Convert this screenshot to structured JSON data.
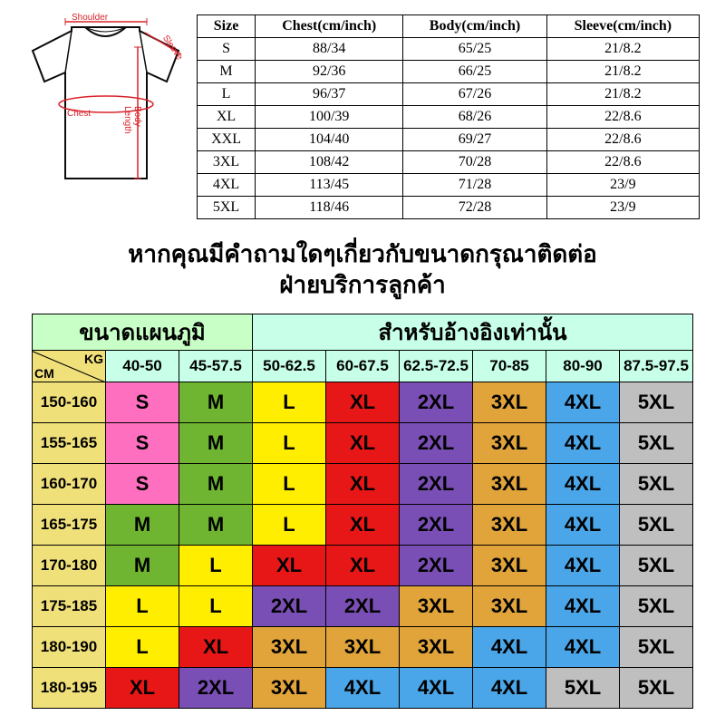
{
  "shirt_labels": {
    "shoulder": "Shoulder",
    "sleeve": "Sleeve",
    "chest": "Chest",
    "body": "Body Length"
  },
  "shirt_colors": {
    "outline": "#0b0b0b",
    "accent": "#d8232a",
    "fill": "#ffffff"
  },
  "size_table": {
    "headers": [
      "Size",
      "Chest(cm/inch)",
      "Body(cm/inch)",
      "Sleeve(cm/inch)"
    ],
    "rows": [
      [
        "S",
        "88/34",
        "65/25",
        "21/8.2"
      ],
      [
        "M",
        "92/36",
        "66/25",
        "21/8.2"
      ],
      [
        "L",
        "96/37",
        "67/26",
        "21/8.2"
      ],
      [
        "XL",
        "100/39",
        "68/26",
        "22/8.6"
      ],
      [
        "XXL",
        "104/40",
        "69/27",
        "22/8.6"
      ],
      [
        "3XL",
        "108/42",
        "70/28",
        "22/8.6"
      ],
      [
        "4XL",
        "113/45",
        "71/28",
        "23/9"
      ],
      [
        "5XL",
        "118/46",
        "72/28",
        "23/9"
      ]
    ]
  },
  "message": {
    "line1": "หากคุณมีคำถามใดๆเกี่ยวกับขนาดกรุณาติดต่อ",
    "line2": "ฝ่ายบริการลูกค้า"
  },
  "rec_table": {
    "group_headers": [
      {
        "label": "ขนาดแผนภูมิ",
        "span": 3,
        "bg": "#c7ffc7"
      },
      {
        "label": "สำหรับอ้างอิงเท่านั้น",
        "span": 6,
        "bg": "#c7ffe9"
      }
    ],
    "corner": {
      "cm": "CM",
      "kg": "KG"
    },
    "weight_cols": [
      "40-50",
      "45-57.5",
      "50-62.5",
      "60-67.5",
      "62.5-72.5",
      "70-85",
      "80-90",
      "87.5-97.5"
    ],
    "height_rows": [
      "150-160",
      "155-165",
      "160-170",
      "165-175",
      "170-180",
      "175-185",
      "180-190",
      "180-195"
    ],
    "cells": [
      [
        "S",
        "M",
        "L",
        "XL",
        "2XL",
        "3XL",
        "4XL",
        "5XL"
      ],
      [
        "S",
        "M",
        "L",
        "XL",
        "2XL",
        "3XL",
        "4XL",
        "5XL"
      ],
      [
        "S",
        "M",
        "L",
        "XL",
        "2XL",
        "3XL",
        "4XL",
        "5XL"
      ],
      [
        "M",
        "M",
        "L",
        "XL",
        "2XL",
        "3XL",
        "4XL",
        "5XL"
      ],
      [
        "M",
        "L",
        "XL",
        "XL",
        "2XL",
        "3XL",
        "4XL",
        "5XL"
      ],
      [
        "L",
        "L",
        "2XL",
        "2XL",
        "3XL",
        "3XL",
        "4XL",
        "5XL"
      ],
      [
        "L",
        "XL",
        "3XL",
        "3XL",
        "3XL",
        "4XL",
        "4XL",
        "5XL"
      ],
      [
        "XL",
        "2XL",
        "3XL",
        "4XL",
        "4XL",
        "4XL",
        "5XL",
        "5XL"
      ]
    ],
    "palette": {
      "S": "#ff6fc0",
      "M": "#6fb531",
      "L": "#ffee00",
      "XL": "#e81717",
      "2XL": "#7a4fb5",
      "3XL": "#e0a43b",
      "4XL": "#4aa6e8",
      "5XL": "#bfbfbf",
      "height": "#f0e07a",
      "weight": "#c7ffe9",
      "group_map": "#c7ffc7",
      "group_ref": "#c7ffe9"
    }
  }
}
